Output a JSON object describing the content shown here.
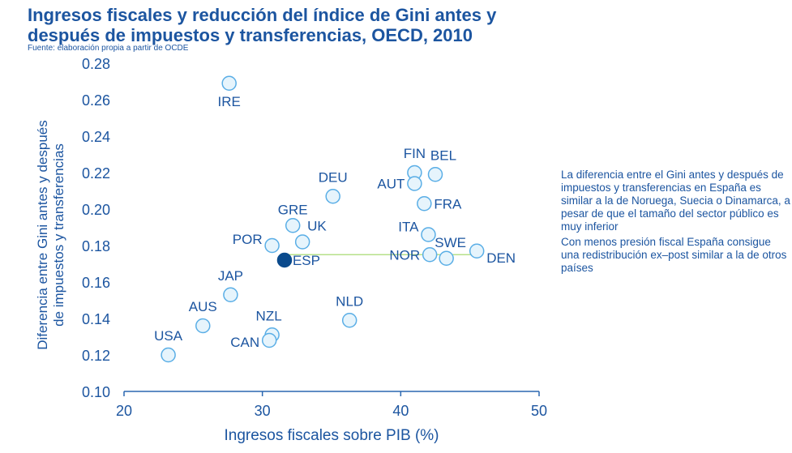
{
  "title_line1": "Ingresos fiscales y reducción del índice de Gini antes y",
  "title_line2": "después de impuestos y transferencias, OECD, 2010",
  "source": "Fuente: elaboración propia a partir de OCDE",
  "notes": [
    "La diferencia entre el Gini antes y después de impuestos y transferencias en España es similar a la de Noruega, Suecia o Dinamarca, a pesar de que el tamaño del sector público es muy inferior",
    "Con menos presión fiscal España consigue una redistribución ex–post similar a la de otros países"
  ],
  "colors": {
    "text": "#1c55a0",
    "marker_edge": "#5aaee6",
    "marker_fill": "#e6f4fc",
    "highlight": "#0a4a8c",
    "reference_line": "#b6e08a"
  },
  "chart_data": {
    "type": "scatter",
    "xlabel": "Ingresos fiscales sobre PIB (%)",
    "ylabel": "Diferencia entre Gini antes y después de impuestos y transferencias",
    "xlim": [
      20,
      50
    ],
    "ylim": [
      0.1,
      0.28
    ],
    "xticks": [
      "20",
      "30",
      "40",
      "50"
    ],
    "yticks": [
      "0.10",
      "0.12",
      "0.14",
      "0.16",
      "0.18",
      "0.20",
      "0.22",
      "0.24",
      "0.26",
      "0.28"
    ],
    "grid": false,
    "reference_line": {
      "y": 0.175,
      "x": [
        31.6,
        45.5
      ]
    },
    "points": [
      {
        "label": "IRE",
        "x": 27.6,
        "y": 0.269
      },
      {
        "label": "DEU",
        "x": 35.1,
        "y": 0.207
      },
      {
        "label": "FIN",
        "x": 41.0,
        "y": 0.22
      },
      {
        "label": "BEL",
        "x": 42.5,
        "y": 0.219
      },
      {
        "label": "AUT",
        "x": 41.0,
        "y": 0.214
      },
      {
        "label": "FRA",
        "x": 41.7,
        "y": 0.203
      },
      {
        "label": "ITA",
        "x": 42.0,
        "y": 0.186
      },
      {
        "label": "SWE",
        "x": 43.3,
        "y": 0.173
      },
      {
        "label": "NOR",
        "x": 42.1,
        "y": 0.175
      },
      {
        "label": "DEN",
        "x": 45.5,
        "y": 0.177
      },
      {
        "label": "GRE",
        "x": 32.2,
        "y": 0.191
      },
      {
        "label": "UK",
        "x": 32.9,
        "y": 0.182
      },
      {
        "label": "POR",
        "x": 30.7,
        "y": 0.18
      },
      {
        "label": "ESP",
        "x": 31.6,
        "y": 0.172,
        "highlight": true
      },
      {
        "label": "JAP",
        "x": 27.7,
        "y": 0.153
      },
      {
        "label": "AUS",
        "x": 25.7,
        "y": 0.136
      },
      {
        "label": "NZL",
        "x": 30.7,
        "y": 0.131
      },
      {
        "label": "CAN",
        "x": 30.5,
        "y": 0.128
      },
      {
        "label": "NLD",
        "x": 36.3,
        "y": 0.139
      },
      {
        "label": "USA",
        "x": 23.2,
        "y": 0.12
      }
    ]
  }
}
